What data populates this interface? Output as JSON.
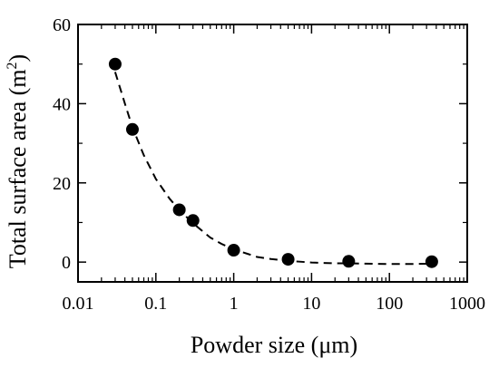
{
  "chart_data": {
    "type": "scatter",
    "xscale": "log",
    "xlim": [
      0.01,
      1000
    ],
    "ylim": [
      -5,
      60
    ],
    "grid": false,
    "legend": "none",
    "xlabel": "Powder size (μm)",
    "ylabel_main": "Total surface area (m",
    "ylabel_sup": "2",
    "ylabel_close": ")",
    "xticks": [
      {
        "value": 0.01,
        "label": "0.01"
      },
      {
        "value": 0.1,
        "label": "0.1"
      },
      {
        "value": 1,
        "label": "1"
      },
      {
        "value": 10,
        "label": "10"
      },
      {
        "value": 100,
        "label": "100"
      },
      {
        "value": 1000,
        "label": "1000"
      }
    ],
    "yticks": [
      {
        "value": 0,
        "label": "0"
      },
      {
        "value": 20,
        "label": "20"
      },
      {
        "value": 40,
        "label": "40"
      },
      {
        "value": 60,
        "label": "60"
      }
    ],
    "series": [
      {
        "marker": "filled-circle",
        "color": "#000000",
        "x": [
          0.03,
          0.05,
          0.2,
          0.3,
          1,
          5,
          30,
          350
        ],
        "y": [
          50,
          33.5,
          13.2,
          10.5,
          3,
          0.7,
          0.2,
          0.1
        ]
      },
      {
        "style": "dashed",
        "color": "#000000",
        "x": [
          0.03,
          0.04,
          0.05,
          0.07,
          0.1,
          0.15,
          0.2,
          0.3,
          0.5,
          0.7,
          1,
          1.5,
          2,
          3,
          5,
          10,
          20,
          30,
          50,
          100,
          200,
          350
        ],
        "y": [
          48,
          40,
          34,
          27,
          21,
          16,
          13.2,
          9.8,
          6.2,
          4.6,
          3.2,
          2.1,
          1.3,
          0.8,
          0.3,
          -0.1,
          -0.3,
          -0.3,
          -0.4,
          -0.5,
          -0.5,
          -0.4
        ]
      }
    ]
  }
}
